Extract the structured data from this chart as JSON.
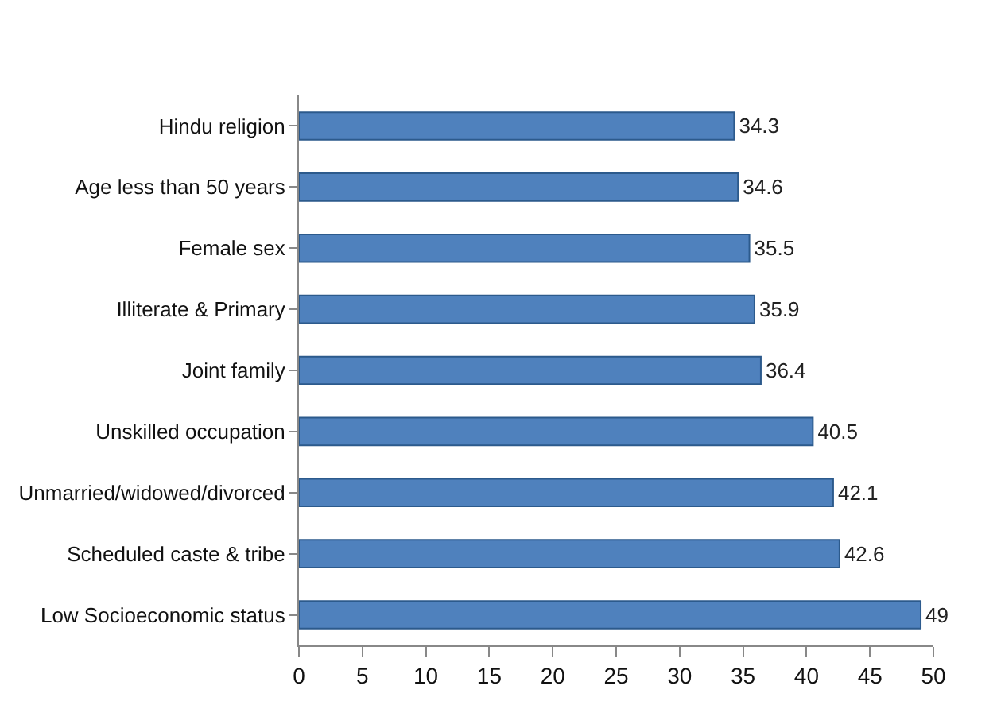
{
  "chart_data": {
    "type": "bar",
    "orientation": "horizontal",
    "categories": [
      "Hindu religion",
      "Age less than 50 years",
      "Female sex",
      "Illiterate & Primary",
      "Joint family",
      "Unskilled occupation",
      "Unmarried/widowed/divorced",
      "Scheduled caste & tribe",
      "Low Socioeconomic status"
    ],
    "values": [
      34.3,
      34.6,
      35.5,
      35.9,
      36.4,
      40.5,
      42.1,
      42.6,
      49
    ],
    "color": "#4f81bd",
    "xlim": [
      0,
      50
    ],
    "xticks": [
      0,
      5,
      10,
      15,
      20,
      25,
      30,
      35,
      40,
      45,
      50
    ],
    "data_labels": true
  }
}
